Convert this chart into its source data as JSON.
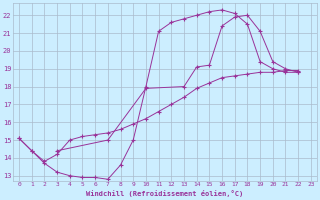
{
  "xlabel": "Windchill (Refroidissement éolien,°C)",
  "bg_color": "#cceeff",
  "line_color": "#993399",
  "grid_color": "#aabbcc",
  "xlim": [
    -0.5,
    23.5
  ],
  "ylim": [
    12.7,
    22.7
  ],
  "xticks": [
    0,
    1,
    2,
    3,
    4,
    5,
    6,
    7,
    8,
    9,
    10,
    11,
    12,
    13,
    14,
    15,
    16,
    17,
    18,
    19,
    20,
    21,
    22,
    23
  ],
  "yticks": [
    13,
    14,
    15,
    16,
    17,
    18,
    19,
    20,
    21,
    22
  ],
  "series1": [
    [
      0,
      15.1
    ],
    [
      1,
      14.4
    ],
    [
      2,
      13.7
    ],
    [
      3,
      13.2
    ],
    [
      4,
      13.0
    ],
    [
      5,
      12.9
    ],
    [
      6,
      12.9
    ],
    [
      7,
      12.8
    ],
    [
      8,
      13.6
    ],
    [
      9,
      15.0
    ],
    [
      10,
      18.0
    ],
    [
      11,
      21.1
    ],
    [
      12,
      21.6
    ],
    [
      13,
      21.8
    ],
    [
      14,
      22.0
    ],
    [
      15,
      22.2
    ],
    [
      16,
      22.3
    ],
    [
      17,
      22.1
    ],
    [
      18,
      21.5
    ],
    [
      19,
      19.4
    ],
    [
      20,
      19.0
    ],
    [
      21,
      18.8
    ],
    [
      22,
      18.8
    ]
  ],
  "series2": [
    [
      0,
      15.1
    ],
    [
      1,
      14.4
    ],
    [
      2,
      13.8
    ],
    [
      3,
      14.2
    ],
    [
      4,
      15.0
    ],
    [
      5,
      15.2
    ],
    [
      6,
      15.3
    ],
    [
      7,
      15.4
    ],
    [
      8,
      15.6
    ],
    [
      9,
      15.9
    ],
    [
      10,
      16.2
    ],
    [
      11,
      16.6
    ],
    [
      12,
      17.0
    ],
    [
      13,
      17.4
    ],
    [
      14,
      17.9
    ],
    [
      15,
      18.2
    ],
    [
      16,
      18.5
    ],
    [
      17,
      18.6
    ],
    [
      18,
      18.7
    ],
    [
      19,
      18.8
    ],
    [
      20,
      18.8
    ],
    [
      21,
      18.9
    ],
    [
      22,
      18.9
    ]
  ],
  "series3": [
    [
      3,
      14.4
    ],
    [
      7,
      15.0
    ],
    [
      10,
      17.9
    ],
    [
      13,
      18.0
    ],
    [
      14,
      19.1
    ],
    [
      15,
      19.2
    ],
    [
      16,
      21.4
    ],
    [
      17,
      21.9
    ],
    [
      18,
      22.0
    ],
    [
      19,
      21.1
    ],
    [
      20,
      19.4
    ],
    [
      21,
      19.0
    ],
    [
      22,
      18.8
    ]
  ]
}
